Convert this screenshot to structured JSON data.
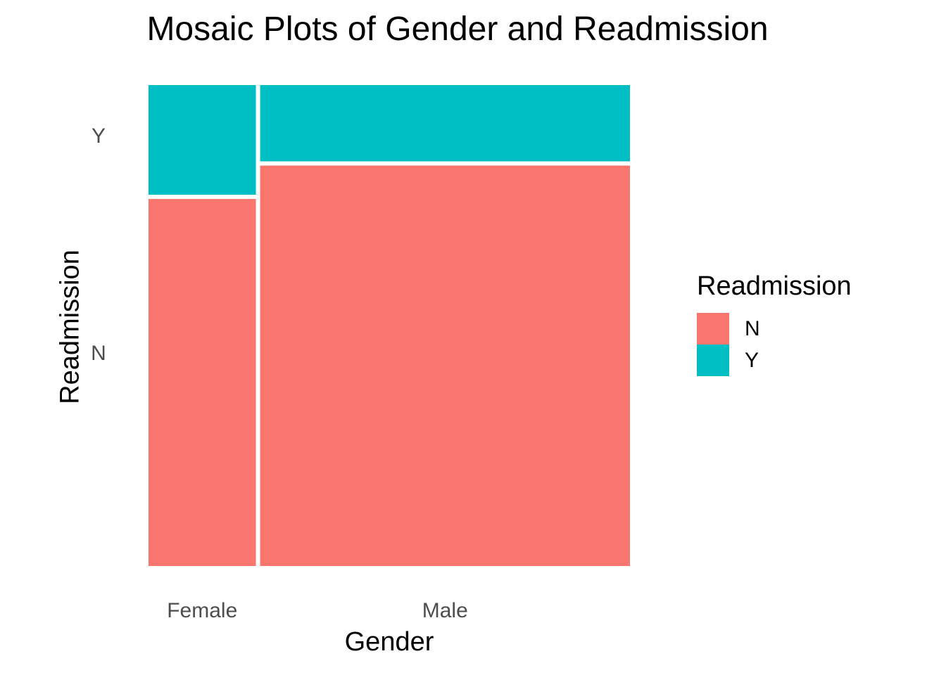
{
  "chart_data": {
    "type": "mosaic",
    "title": "Mosaic Plots of Gender and Readmission",
    "xlabel": "Gender",
    "ylabel": "Readmission",
    "categories": [
      "Female",
      "Male"
    ],
    "category_widths": [
      0.225,
      0.775
    ],
    "series": [
      {
        "name": "N",
        "color": "#F8766D",
        "proportions": [
          0.77,
          0.84
        ]
      },
      {
        "name": "Y",
        "color": "#00BFC4",
        "proportions": [
          0.23,
          0.16
        ]
      }
    ],
    "y_tick_labels": [
      "N",
      "Y"
    ],
    "legend": {
      "title": "Readmission",
      "position": "right"
    },
    "grid": false
  }
}
